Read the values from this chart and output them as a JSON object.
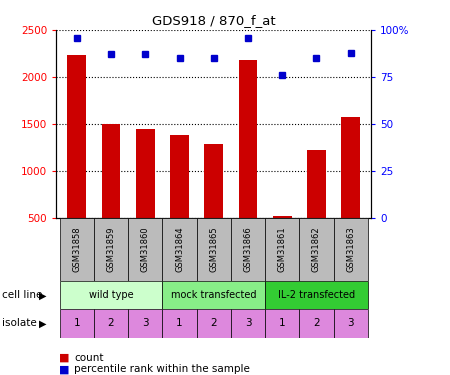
{
  "title": "GDS918 / 870_f_at",
  "samples": [
    "GSM31858",
    "GSM31859",
    "GSM31860",
    "GSM31864",
    "GSM31865",
    "GSM31866",
    "GSM31861",
    "GSM31862",
    "GSM31863"
  ],
  "counts": [
    2230,
    1500,
    1440,
    1380,
    1285,
    2185,
    520,
    1215,
    1570
  ],
  "percentiles": [
    96,
    87,
    87,
    85,
    85,
    96,
    76,
    85,
    88
  ],
  "bar_color": "#cc0000",
  "dot_color": "#0000cc",
  "ylim_left": [
    500,
    2500
  ],
  "ylim_right": [
    0,
    100
  ],
  "yticks_left": [
    500,
    1000,
    1500,
    2000,
    2500
  ],
  "yticks_right": [
    0,
    25,
    50,
    75,
    100
  ],
  "cell_line_groups": [
    {
      "label": "wild type",
      "start": 0,
      "end": 3,
      "color": "#ccffcc"
    },
    {
      "label": "mock transfected",
      "start": 3,
      "end": 6,
      "color": "#88ee88"
    },
    {
      "label": "IL-2 transfected",
      "start": 6,
      "end": 9,
      "color": "#33cc33"
    }
  ],
  "isolates": [
    "1",
    "2",
    "3",
    "1",
    "2",
    "3",
    "1",
    "2",
    "3"
  ],
  "isolate_color": "#dd88dd",
  "cell_line_label": "cell line",
  "isolate_label": "isolate",
  "legend_count_label": "count",
  "legend_percentile_label": "percentile rank within the sample",
  "sample_box_color": "#bbbbbb"
}
